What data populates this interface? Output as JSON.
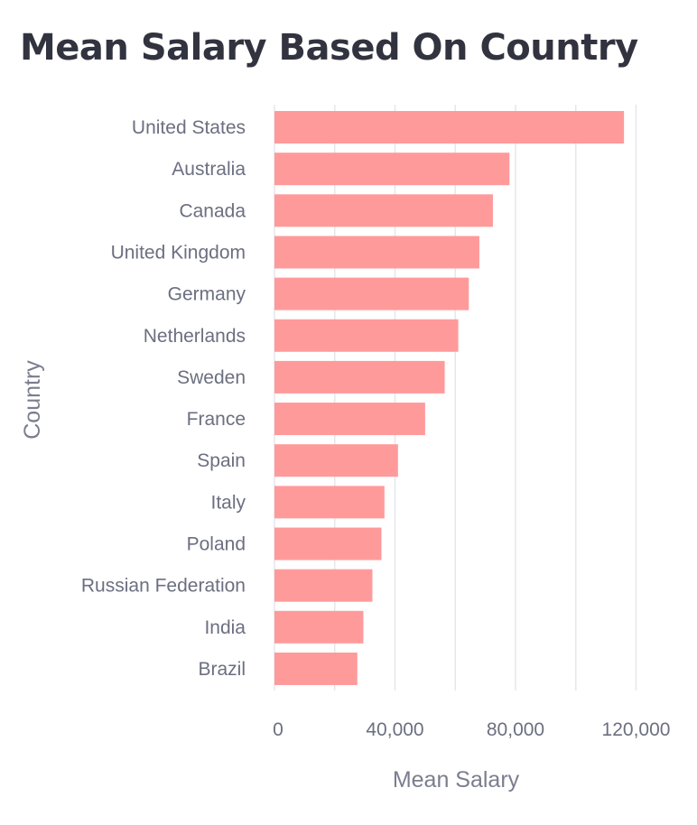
{
  "chart_data": {
    "type": "bar",
    "orientation": "horizontal",
    "title": "Mean Salary Based On Country",
    "xlabel": "Mean Salary",
    "ylabel": "Country",
    "categories": [
      "United States",
      "Australia",
      "Canada",
      "United Kingdom",
      "Germany",
      "Netherlands",
      "Sweden",
      "France",
      "Spain",
      "Italy",
      "Poland",
      "Russian Federation",
      "India",
      "Brazil"
    ],
    "values": [
      116000,
      78000,
      72500,
      68000,
      64500,
      61000,
      56500,
      50000,
      41000,
      36500,
      35500,
      32500,
      29500,
      27500
    ],
    "xlim": [
      0,
      120000
    ],
    "xticks": [
      0,
      40000,
      80000,
      120000
    ],
    "xtick_labels": [
      "0",
      "40,000",
      "80,000",
      "120,000"
    ],
    "grid": true,
    "bar_color": "#ff9a9b",
    "grid_color": "#e6e7eb"
  }
}
